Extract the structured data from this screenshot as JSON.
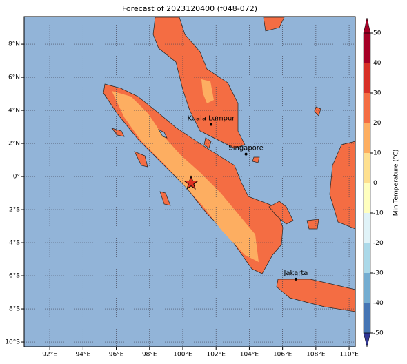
{
  "title": "Forecast of 2023120400 (f048-072)",
  "map": {
    "xlim": [
      90.46,
      110.37
    ],
    "ylim": [
      -10.29,
      9.67
    ],
    "xticks": [
      {
        "value": 92,
        "label": "92°E"
      },
      {
        "value": 94,
        "label": "94°E"
      },
      {
        "value": 96,
        "label": "96°E"
      },
      {
        "value": 98,
        "label": "98°E"
      },
      {
        "value": 100,
        "label": "100°E"
      },
      {
        "value": 102,
        "label": "102°E"
      },
      {
        "value": 104,
        "label": "104°E"
      },
      {
        "value": 106,
        "label": "106°E"
      },
      {
        "value": 108,
        "label": "108°E"
      },
      {
        "value": 110,
        "label": "110°E"
      }
    ],
    "yticks": [
      {
        "value": 8,
        "label": "8°N"
      },
      {
        "value": 6,
        "label": "6°N"
      },
      {
        "value": 4,
        "label": "4°N"
      },
      {
        "value": 2,
        "label": "2°N"
      },
      {
        "value": 0,
        "label": "0°"
      },
      {
        "value": -2,
        "label": "2°S"
      },
      {
        "value": -4,
        "label": "4°S"
      },
      {
        "value": -6,
        "label": "6°S"
      },
      {
        "value": -8,
        "label": "8°S"
      },
      {
        "value": -10,
        "label": "10°S"
      }
    ],
    "grid": true,
    "cities": [
      {
        "name": "Kuala Lumpur",
        "lon": 101.7,
        "lat": 3.15
      },
      {
        "name": "Singapore",
        "lon": 103.8,
        "lat": 1.35
      },
      {
        "name": "Jakarta",
        "lon": 106.8,
        "lat": -6.2
      }
    ],
    "marker": {
      "lon": 100.5,
      "lat": -0.4
    }
  },
  "colorbar": {
    "label": "Min Temperature (°C)",
    "lim": [
      -50,
      50
    ],
    "ticks": [
      -50,
      -40,
      -30,
      -20,
      -10,
      0,
      10,
      20,
      30,
      40,
      50
    ],
    "colors": [
      "#313695",
      "#4575b4",
      "#74add1",
      "#abd9e9",
      "#e0f3f8",
      "#ffffbf",
      "#fee090",
      "#fdae61",
      "#f46d43",
      "#d73027",
      "#a50026"
    ]
  }
}
